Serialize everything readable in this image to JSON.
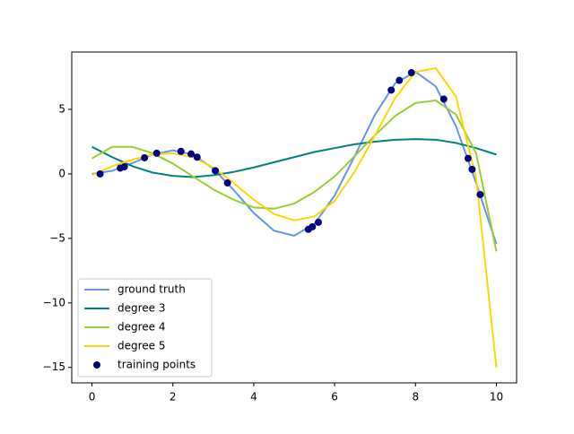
{
  "chart_data": {
    "type": "line",
    "x": [
      0,
      0.5,
      1,
      1.5,
      2,
      2.5,
      3,
      3.5,
      4,
      4.5,
      5,
      5.5,
      6,
      6.5,
      7,
      7.5,
      8,
      8.5,
      9,
      9.5,
      10
    ],
    "series": [
      {
        "name": "ground truth",
        "color": "#6495ed",
        "values": [
          0,
          0.24,
          0.84,
          1.5,
          1.82,
          1.5,
          0.42,
          -1.23,
          -3.03,
          -4.4,
          -4.79,
          -3.88,
          -1.68,
          1.4,
          4.6,
          7.03,
          7.92,
          6.79,
          3.71,
          -0.71,
          -5.44
        ]
      },
      {
        "name": "degree 3",
        "color": "#008080",
        "values": [
          2.1,
          1.3,
          0.6,
          0.1,
          -0.15,
          -0.25,
          -0.1,
          0.15,
          0.5,
          0.9,
          1.3,
          1.7,
          2.0,
          2.3,
          2.5,
          2.65,
          2.7,
          2.65,
          2.4,
          2.0,
          1.5
        ]
      },
      {
        "name": "degree 4",
        "color": "#9acd32",
        "values": [
          1.2,
          2.1,
          2.1,
          1.6,
          0.8,
          -0.2,
          -1.2,
          -2.0,
          -2.6,
          -2.7,
          -2.3,
          -1.4,
          -0.2,
          1.4,
          3.0,
          4.5,
          5.5,
          5.7,
          4.6,
          1.6,
          -6.0
        ]
      },
      {
        "name": "degree 5",
        "color": "#ffd700",
        "values": [
          -0.1,
          0.6,
          1.1,
          1.5,
          1.6,
          1.3,
          0.5,
          -0.7,
          -2.0,
          -3.1,
          -3.6,
          -3.3,
          -2.1,
          0.2,
          3.0,
          5.9,
          7.9,
          8.2,
          6.0,
          -0.3,
          -15
        ]
      }
    ],
    "points": {
      "name": "training points",
      "color": "#000080",
      "x": [
        0.2,
        0.7,
        0.8,
        1.3,
        1.6,
        2.2,
        2.45,
        2.6,
        3.05,
        3.35,
        5.35,
        5.45,
        5.6,
        7.4,
        7.6,
        7.9,
        8.7,
        9.3,
        9.4,
        9.6
      ],
      "y": [
        0.0,
        0.45,
        0.55,
        1.25,
        1.6,
        1.75,
        1.55,
        1.3,
        0.25,
        -0.7,
        -4.3,
        -4.1,
        -3.75,
        6.5,
        7.25,
        7.85,
        5.8,
        1.2,
        0.35,
        -1.6
      ]
    },
    "xlim": [
      -0.5,
      10.5
    ],
    "ylim": [
      -16.2,
      9.45
    ],
    "xticks": [
      0,
      2,
      4,
      6,
      8,
      10
    ],
    "yticks": [
      {
        "value": -15,
        "label": "−15"
      },
      {
        "value": -10,
        "label": "−10"
      },
      {
        "value": -5,
        "label": "−5"
      },
      0,
      5
    ],
    "legend": "lower left"
  }
}
